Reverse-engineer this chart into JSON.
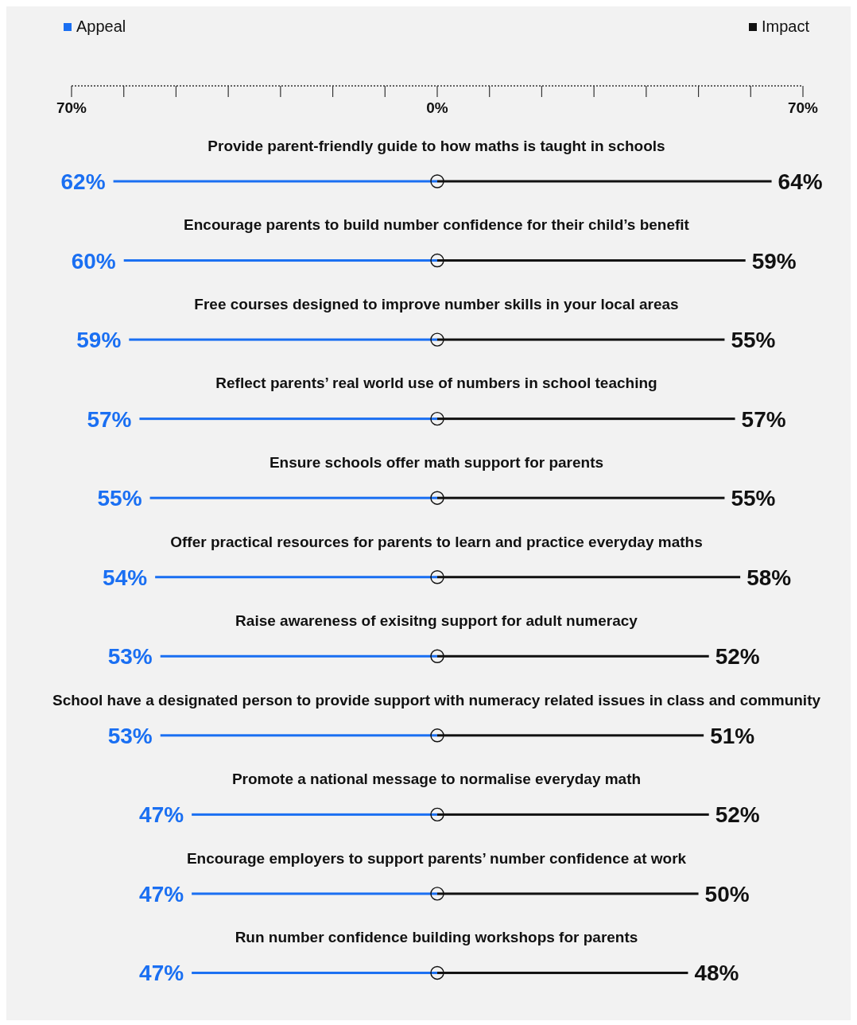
{
  "chart_data": {
    "type": "bar",
    "orientation": "horizontal",
    "categories": [
      "Provide parent-friendly guide to how maths is taught in schools",
      "Encourage parents to build number confidence for their child’s benefit",
      "Free courses designed to improve number skills in your local areas",
      "Reflect parents’ real world use of numbers in school teaching",
      "Ensure schools offer math support for parents",
      "Offer practical resources for parents to learn and practice everyday maths",
      "Raise awareness of exisitng support for adult numeracy",
      "School have a designated person to provide support with numeracy related issues in class and community",
      "Promote a national message to normalise everyday math",
      "Encourage employers to support parents’ number confidence at work",
      "Run number confidence building workshops for parents"
    ],
    "series": [
      {
        "name": "Appeal",
        "color": "#1a6ff2",
        "values": [
          62,
          60,
          59,
          57,
          55,
          54,
          53,
          53,
          47,
          47,
          47
        ],
        "base": [
          -62,
          -60,
          -59,
          -57,
          -55,
          -54,
          -53,
          -53,
          -47,
          -47,
          -47
        ],
        "value_labels": [
          "62%",
          "60%",
          "59%",
          "57%",
          "55%",
          "54%",
          "53%",
          "53%",
          "47%",
          "47%",
          "47%"
        ]
      },
      {
        "name": "Impact",
        "color": "#111111",
        "values": [
          64,
          59,
          55,
          57,
          55,
          58,
          52,
          51,
          52,
          50,
          48
        ],
        "value_labels": [
          "64%",
          "59%",
          "55%",
          "57%",
          "55%",
          "58%",
          "52%",
          "51%",
          "52%",
          "50%",
          "48%"
        ]
      }
    ],
    "xlim": [
      -70,
      70
    ],
    "xticks": [
      {
        "value": -70,
        "label": "70%"
      },
      {
        "value": -60,
        "label": null
      },
      {
        "value": -50,
        "label": null
      },
      {
        "value": -40,
        "label": null
      },
      {
        "value": -30,
        "label": null
      },
      {
        "value": -20,
        "label": null
      },
      {
        "value": -10,
        "label": null
      },
      {
        "value": 0,
        "label": "0%"
      },
      {
        "value": 10,
        "label": null
      },
      {
        "value": 20,
        "label": null
      },
      {
        "value": 30,
        "label": null
      },
      {
        "value": 40,
        "label": null
      },
      {
        "value": 50,
        "label": null
      },
      {
        "value": 60,
        "label": null
      },
      {
        "value": 70,
        "label": "70%"
      }
    ],
    "legend": "top",
    "grid": false,
    "line_style": "dotted",
    "marker": "circle"
  }
}
